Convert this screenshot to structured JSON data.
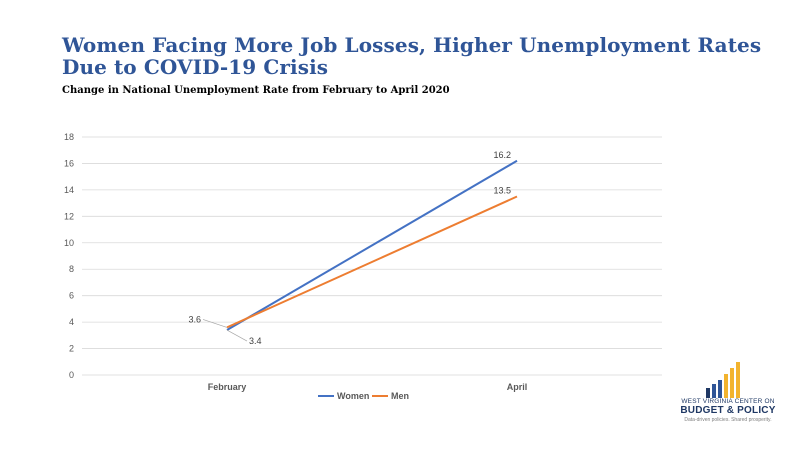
{
  "header": {
    "title": "Women Facing More Job Losses, Higher Unemployment Rates Due to COVID-19 Crisis",
    "subtitle": "Change in National Unemployment Rate from February to April 2020"
  },
  "chart_data": {
    "type": "line",
    "categories": [
      "February",
      "April"
    ],
    "series": [
      {
        "name": "Women",
        "values": [
          3.4,
          16.2
        ],
        "color": "#4472c4"
      },
      {
        "name": "Men",
        "values": [
          3.6,
          13.5
        ],
        "color": "#ed7d31"
      }
    ],
    "ylim": [
      0,
      18
    ],
    "yticks": [
      0,
      2,
      4,
      6,
      8,
      10,
      12,
      14,
      16,
      18
    ],
    "grid": true,
    "legend": "bottom",
    "data_labels": true
  },
  "logo": {
    "line1": "WEST VIRGINIA CENTER ON",
    "line2": "BUDGET & POLICY",
    "line3": "Data-driven policies. Shared prosperity.",
    "bar_colors": [
      "#1f3864",
      "#2f5597",
      "#2f5597",
      "#f2b32e",
      "#f2b32e",
      "#f2b32e"
    ]
  }
}
